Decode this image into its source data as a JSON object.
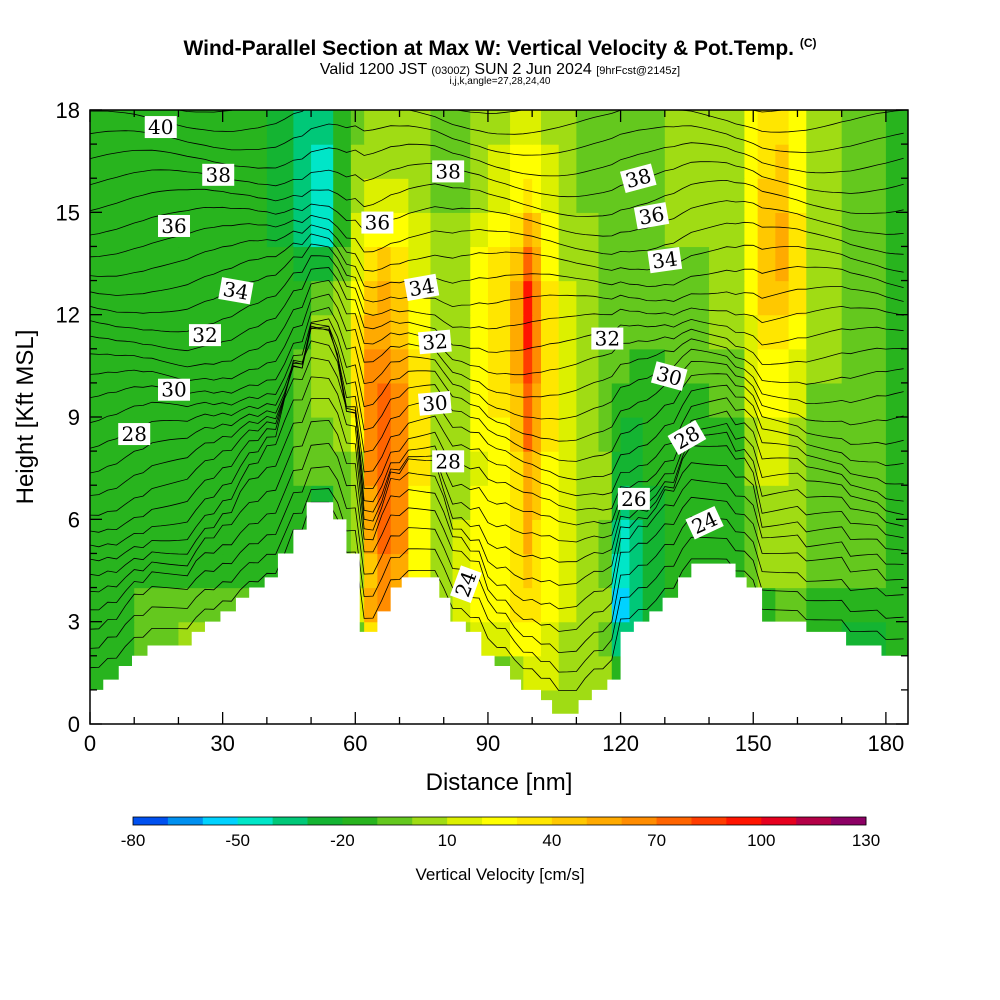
{
  "title": {
    "main": "Wind-Parallel Section at Max W: Vertical Velocity & Pot.Temp.",
    "copyright": "(C)",
    "valid_prefix": "Valid 1200 JST",
    "valid_utc": "(0300Z)",
    "valid_date": "SUN 2 Jun 2024",
    "forecast": "[9hrFcst@2145z]",
    "indices": "i,j,k,angle=27,28,24,40"
  },
  "chart_data": {
    "type": "heatmap",
    "title": "Wind-Parallel Section at Max W: Vertical Velocity & Pot.Temp.",
    "xlabel": "Distance [nm]",
    "ylabel": "Height [Kft MSL]",
    "xlim": [
      0,
      185
    ],
    "ylim": [
      0,
      18
    ],
    "x_ticks": [
      "0",
      "30",
      "60",
      "90",
      "120",
      "150",
      "180"
    ],
    "y_ticks": [
      "0",
      "3",
      "6",
      "9",
      "12",
      "15",
      "18"
    ],
    "colorbar": {
      "label": "Vertical Velocity [cm/s]",
      "tick_labels": [
        "-80",
        "-50",
        "-20",
        "10",
        "40",
        "70",
        "100",
        "130"
      ],
      "min": -80,
      "max": 130,
      "step": 10,
      "colors": [
        "#0000f0",
        "#0050f0",
        "#0090f0",
        "#00d2ff",
        "#00e6c8",
        "#00c878",
        "#14b432",
        "#28b41e",
        "#64c81e",
        "#a0dc14",
        "#dcf000",
        "#ffff00",
        "#ffe600",
        "#ffc800",
        "#ffaa00",
        "#ff8c00",
        "#ff6400",
        "#ff3c00",
        "#ff1400",
        "#e6001e",
        "#b40046",
        "#8c0064",
        "#64008c"
      ]
    },
    "vertical_velocity_cells": {
      "x_nodes": [
        0,
        10,
        20,
        30,
        40,
        46,
        50,
        55,
        59,
        62,
        65,
        68,
        72,
        77,
        82,
        86,
        90,
        95,
        98,
        100,
        102,
        106,
        110,
        115,
        118,
        120,
        122,
        125,
        130,
        140,
        148,
        151,
        155,
        158,
        162,
        170,
        180,
        185
      ],
      "levels_kft": [
        0.5,
        1.5,
        2.5,
        3.5,
        4.5,
        5.5,
        6.5,
        7.5,
        8.5,
        9.5,
        10.5,
        11.5,
        12.5,
        13.5,
        14.5,
        15.5,
        16.5,
        17.5
      ],
      "w_cm_s": [
        [
          -10,
          0,
          0,
          0,
          0,
          0,
          0,
          0,
          0,
          0,
          0,
          0,
          0,
          0,
          0,
          0,
          0,
          10,
          10,
          10,
          10,
          10,
          10,
          10,
          -10,
          -10,
          -10,
          -10,
          -10,
          -10,
          -10,
          -10,
          -10,
          -10,
          -10,
          -10,
          -10
        ],
        [
          -10,
          0,
          0,
          0,
          0,
          0,
          0,
          0,
          0,
          0,
          0,
          0,
          0,
          0,
          0,
          0,
          0,
          10,
          20,
          20,
          20,
          10,
          10,
          10,
          -10,
          -10,
          -10,
          -10,
          -10,
          -10,
          -10,
          -10,
          -10,
          -10,
          -10,
          -10,
          -10
        ],
        [
          -10,
          0,
          10,
          0,
          0,
          0,
          0,
          0,
          0,
          40,
          40,
          30,
          10,
          10,
          10,
          20,
          20,
          30,
          30,
          30,
          20,
          10,
          10,
          0,
          -30,
          -30,
          -30,
          -20,
          -10,
          -10,
          -10,
          -10,
          0,
          0,
          -10,
          -20,
          -10
        ],
        [
          -10,
          0,
          0,
          0,
          0,
          0,
          0,
          0,
          20,
          60,
          70,
          60,
          40,
          10,
          20,
          30,
          30,
          40,
          40,
          40,
          30,
          20,
          10,
          10,
          -50,
          -50,
          -30,
          -20,
          -10,
          -10,
          -10,
          -10,
          0,
          0,
          -10,
          -10,
          -10
        ],
        [
          -10,
          -10,
          -10,
          -10,
          -10,
          -10,
          0,
          0,
          10,
          50,
          70,
          60,
          30,
          10,
          20,
          30,
          30,
          40,
          50,
          40,
          30,
          20,
          10,
          0,
          -40,
          -40,
          -30,
          -20,
          -10,
          -10,
          0,
          10,
          10,
          10,
          0,
          0,
          -10
        ],
        [
          -10,
          -10,
          -10,
          -10,
          -10,
          -10,
          -30,
          0,
          10,
          60,
          80,
          70,
          30,
          10,
          20,
          30,
          30,
          40,
          60,
          40,
          30,
          20,
          10,
          0,
          -30,
          -40,
          -30,
          -20,
          -10,
          -10,
          0,
          10,
          10,
          10,
          0,
          0,
          -10
        ],
        [
          -10,
          -10,
          -10,
          -10,
          -10,
          -10,
          -20,
          0,
          10,
          60,
          80,
          70,
          30,
          10,
          10,
          30,
          30,
          40,
          60,
          50,
          30,
          20,
          10,
          10,
          -20,
          -30,
          -20,
          -20,
          -10,
          -10,
          0,
          10,
          10,
          10,
          0,
          0,
          -10
        ],
        [
          -10,
          -10,
          -10,
          -10,
          -10,
          0,
          0,
          0,
          10,
          70,
          80,
          70,
          40,
          10,
          10,
          20,
          30,
          40,
          60,
          50,
          30,
          20,
          10,
          10,
          -20,
          -20,
          -20,
          -10,
          -10,
          -10,
          10,
          20,
          20,
          10,
          0,
          0,
          -10
        ],
        [
          -10,
          -10,
          -10,
          -10,
          -10,
          0,
          0,
          10,
          30,
          70,
          80,
          70,
          40,
          10,
          10,
          30,
          30,
          50,
          80,
          60,
          40,
          20,
          10,
          0,
          -10,
          -20,
          -20,
          -10,
          -10,
          -10,
          10,
          20,
          20,
          10,
          0,
          0,
          -10
        ],
        [
          -10,
          -10,
          -10,
          -10,
          -10,
          0,
          10,
          10,
          40,
          70,
          80,
          70,
          40,
          10,
          10,
          30,
          40,
          50,
          80,
          60,
          40,
          20,
          10,
          0,
          -10,
          -10,
          -10,
          -10,
          -10,
          0,
          20,
          30,
          30,
          20,
          0,
          0,
          -10
        ],
        [
          -10,
          -10,
          -10,
          -10,
          -10,
          0,
          10,
          10,
          40,
          70,
          70,
          60,
          40,
          10,
          10,
          30,
          40,
          60,
          90,
          70,
          40,
          20,
          10,
          0,
          0,
          0,
          -10,
          -10,
          0,
          0,
          20,
          30,
          30,
          20,
          10,
          0,
          -10
        ],
        [
          -10,
          -10,
          -10,
          -10,
          -10,
          -10,
          10,
          10,
          40,
          60,
          60,
          50,
          30,
          10,
          10,
          30,
          40,
          60,
          100,
          70,
          40,
          20,
          10,
          0,
          0,
          0,
          0,
          0,
          0,
          10,
          20,
          40,
          40,
          30,
          10,
          0,
          -10
        ],
        [
          -10,
          -10,
          -10,
          -10,
          -10,
          -10,
          0,
          10,
          30,
          50,
          60,
          50,
          30,
          10,
          10,
          30,
          40,
          60,
          100,
          70,
          40,
          20,
          10,
          0,
          0,
          0,
          0,
          0,
          0,
          10,
          30,
          50,
          50,
          40,
          10,
          0,
          -10
        ],
        [
          -10,
          -10,
          -10,
          -10,
          -10,
          -20,
          -20,
          0,
          20,
          40,
          50,
          40,
          20,
          10,
          10,
          30,
          40,
          50,
          80,
          60,
          30,
          10,
          10,
          0,
          0,
          0,
          0,
          0,
          0,
          10,
          30,
          50,
          60,
          40,
          10,
          0,
          -10
        ],
        [
          -10,
          -10,
          -10,
          -10,
          -20,
          -30,
          -40,
          -10,
          20,
          30,
          30,
          30,
          20,
          10,
          10,
          20,
          30,
          40,
          60,
          50,
          30,
          10,
          10,
          0,
          0,
          0,
          0,
          0,
          10,
          10,
          30,
          50,
          60,
          40,
          10,
          0,
          -10
        ],
        [
          -10,
          -10,
          -10,
          -10,
          -20,
          -30,
          -40,
          -10,
          10,
          20,
          20,
          20,
          10,
          0,
          0,
          10,
          20,
          30,
          40,
          30,
          20,
          10,
          0,
          0,
          0,
          0,
          0,
          0,
          10,
          10,
          30,
          50,
          50,
          30,
          10,
          0,
          -10
        ],
        [
          -10,
          -10,
          -10,
          -10,
          -20,
          -30,
          -40,
          -10,
          10,
          10,
          10,
          10,
          10,
          0,
          0,
          10,
          20,
          30,
          30,
          30,
          20,
          10,
          0,
          0,
          0,
          0,
          0,
          0,
          10,
          10,
          30,
          40,
          50,
          30,
          10,
          0,
          -10
        ],
        [
          -10,
          -10,
          -10,
          -10,
          -20,
          -30,
          -30,
          -10,
          0,
          10,
          10,
          10,
          10,
          0,
          0,
          10,
          10,
          20,
          20,
          20,
          10,
          10,
          0,
          0,
          0,
          0,
          0,
          0,
          10,
          10,
          30,
          40,
          40,
          30,
          10,
          0,
          -10
        ]
      ]
    },
    "terrain_kft": {
      "x": [
        0,
        3,
        6.5,
        9.5,
        13,
        16.5,
        23,
        26,
        29.5,
        33,
        36,
        39.5,
        42.5,
        46,
        49,
        55,
        58,
        61,
        65,
        68,
        70.5,
        74,
        79,
        81.5,
        85,
        88.5,
        91.5,
        95,
        97.5,
        102,
        104.5,
        107.5,
        110.5,
        113.5,
        117,
        120,
        123,
        126.5,
        129.5,
        133,
        136,
        142.5,
        146,
        148.5,
        152,
        155,
        162,
        165.5,
        171,
        173.5,
        179,
        185
      ],
      "y": [
        1.0,
        1.3,
        1.7,
        2.0,
        2.3,
        2.3,
        2.7,
        3.0,
        3.3,
        3.7,
        4.0,
        4.3,
        5.0,
        5.7,
        6.5,
        6.0,
        5.0,
        2.7,
        3.3,
        4.0,
        4.3,
        4.3,
        3.7,
        3.0,
        2.7,
        2.0,
        1.7,
        1.3,
        1.0,
        0.7,
        0.3,
        0.3,
        0.7,
        1.0,
        1.3,
        2.7,
        3.0,
        3.3,
        3.7,
        4.3,
        4.7,
        4.7,
        4.3,
        4.0,
        3.0,
        3.0,
        2.7,
        2.7,
        2.3,
        2.3,
        2.0,
        2.0
      ]
    },
    "potential_temperature_contours": {
      "label_values": [
        24,
        26,
        28,
        30,
        32,
        34,
        36,
        38,
        40
      ],
      "labels": [
        {
          "text": "40",
          "x": 16,
          "y": 17.5
        },
        {
          "text": "38",
          "x": 29,
          "y": 16.1
        },
        {
          "text": "38",
          "x": 81,
          "y": 16.2
        },
        {
          "text": "38",
          "x": 124,
          "y": 16.0
        },
        {
          "text": "36",
          "x": 19,
          "y": 14.6
        },
        {
          "text": "36",
          "x": 65,
          "y": 14.7
        },
        {
          "text": "36",
          "x": 127,
          "y": 14.9
        },
        {
          "text": "34",
          "x": 33,
          "y": 12.7
        },
        {
          "text": "34",
          "x": 75,
          "y": 12.8
        },
        {
          "text": "34",
          "x": 130,
          "y": 13.6
        },
        {
          "text": "32",
          "x": 26,
          "y": 11.4
        },
        {
          "text": "32",
          "x": 78,
          "y": 11.2
        },
        {
          "text": "32",
          "x": 117,
          "y": 11.3
        },
        {
          "text": "30",
          "x": 19,
          "y": 9.8
        },
        {
          "text": "30",
          "x": 78,
          "y": 9.4
        },
        {
          "text": "30",
          "x": 131,
          "y": 10.2
        },
        {
          "text": "28",
          "x": 10,
          "y": 8.5
        },
        {
          "text": "28",
          "x": 81,
          "y": 7.7
        },
        {
          "text": "28",
          "x": 135,
          "y": 8.4
        },
        {
          "text": "26",
          "x": 123,
          "y": 6.6
        },
        {
          "text": "24",
          "x": 85,
          "y": 4.1
        },
        {
          "text": "24",
          "x": 139,
          "y": 5.9
        }
      ]
    }
  }
}
